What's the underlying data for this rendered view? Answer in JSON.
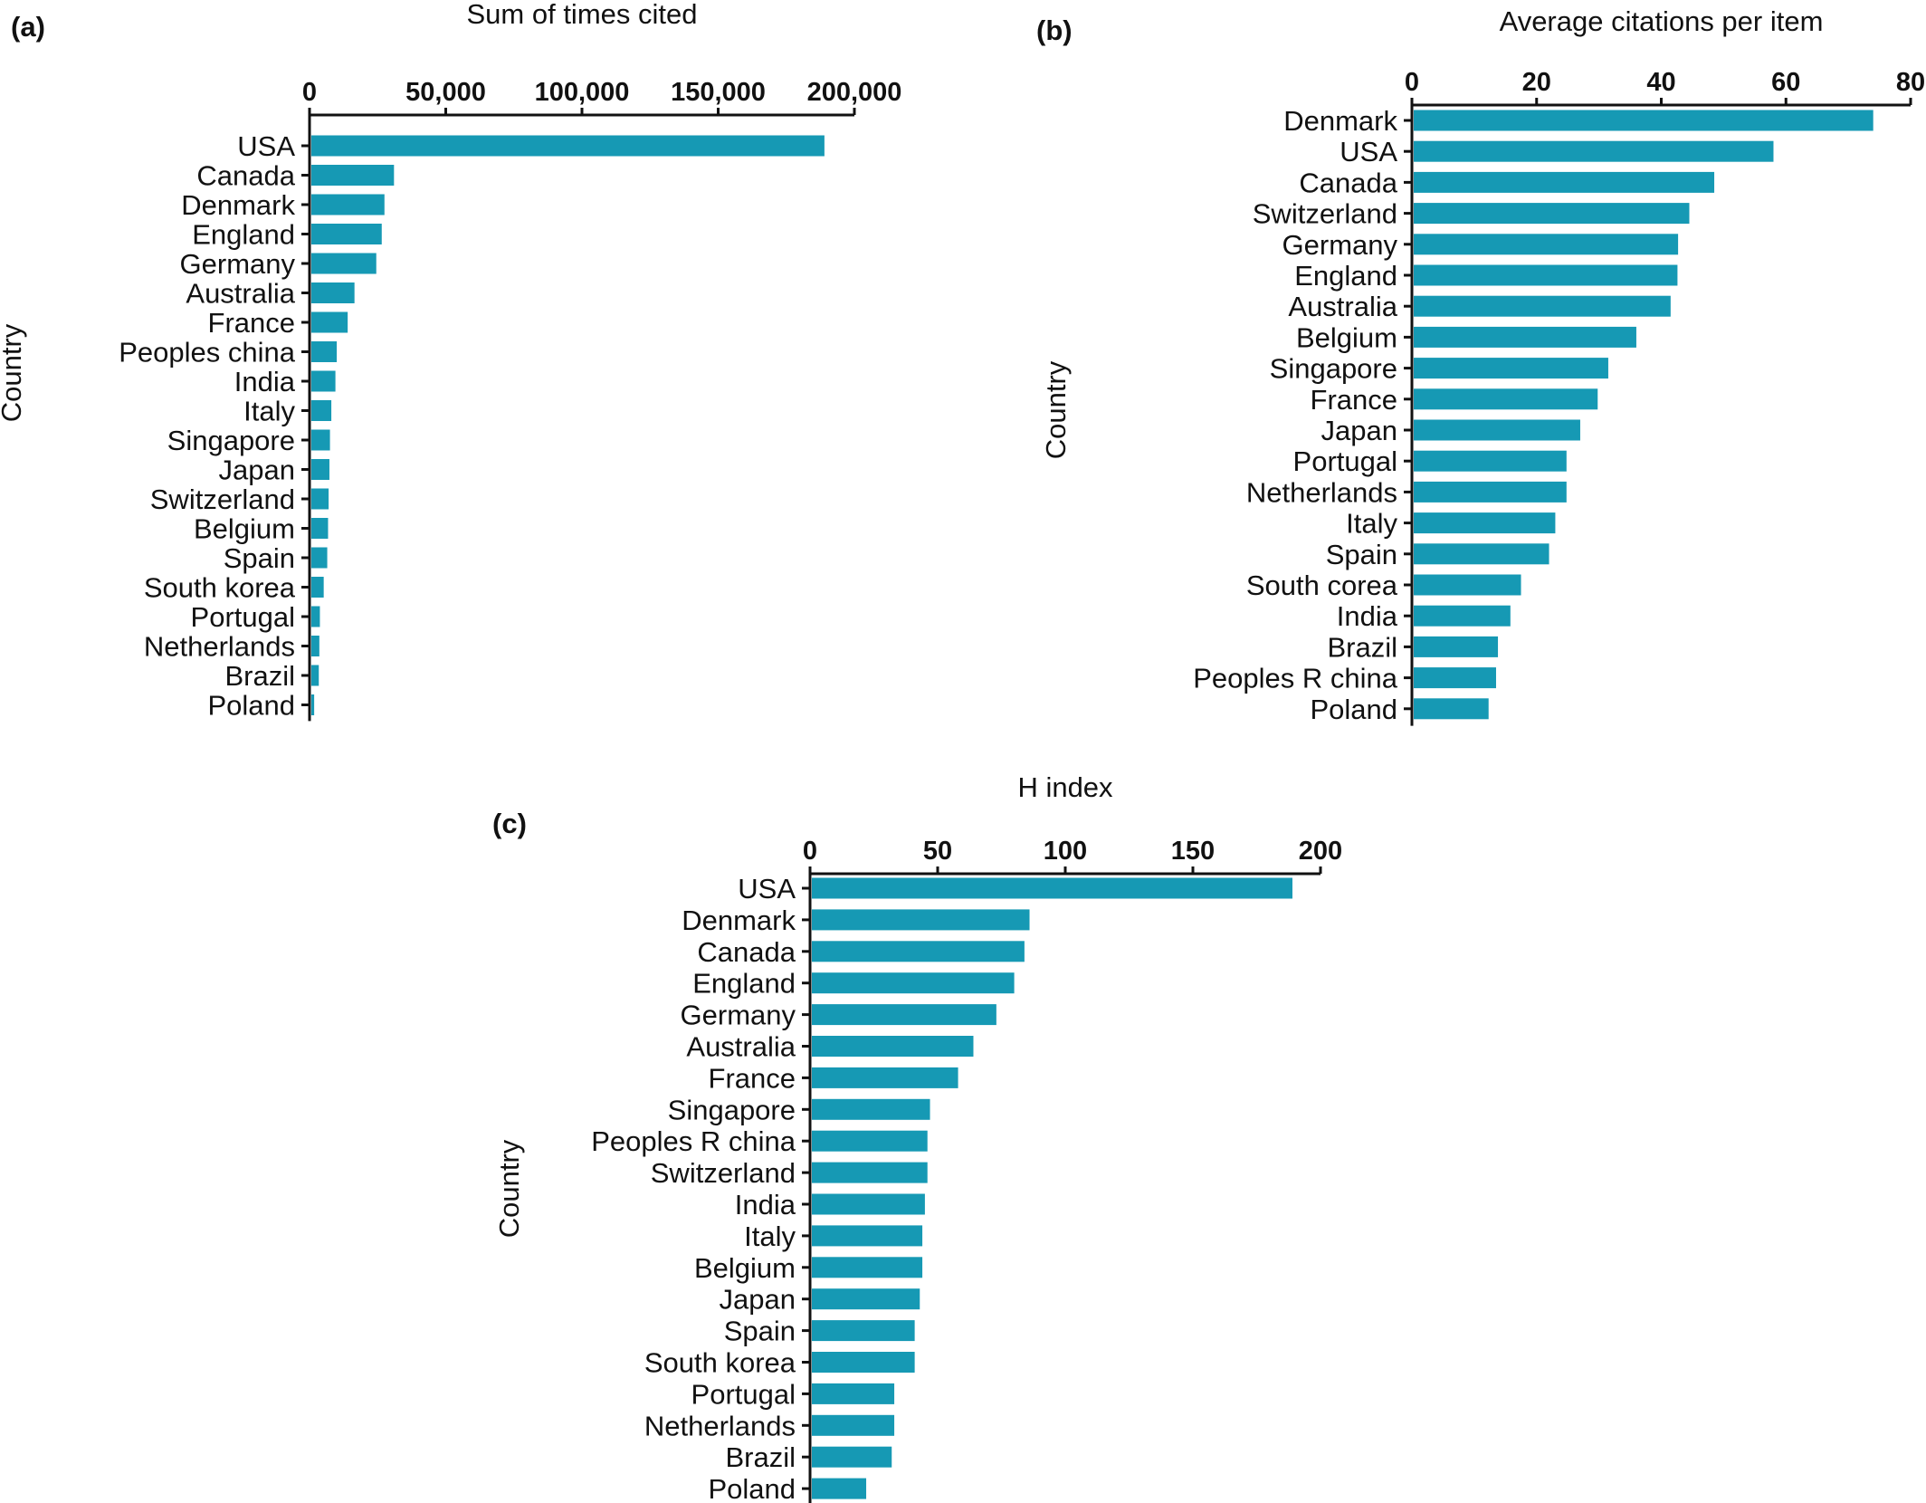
{
  "panels": {
    "a": {
      "letter": "(a)"
    },
    "b": {
      "letter": "(b)"
    },
    "c": {
      "letter": "(c)"
    }
  },
  "colors": {
    "bar": "#1699b4",
    "axis": "#111111"
  },
  "chart_data": [
    {
      "id": "a",
      "type": "bar",
      "orientation": "horizontal",
      "title": "Sum of times cited",
      "ylabel": "Country",
      "xlabel": "",
      "xlim": [
        0,
        200000
      ],
      "ticks": [
        0,
        50000,
        100000,
        150000,
        200000
      ],
      "tick_labels": [
        "0",
        "50,000",
        "100,000",
        "150,000",
        "200,000"
      ],
      "categories": [
        "USA",
        "Canada",
        "Denmark",
        "England",
        "Germany",
        "Australia",
        "France",
        "Peoples china",
        "India",
        "Italy",
        "Singapore",
        "Japan",
        "Switzerland",
        "Belgium",
        "Spain",
        "South korea",
        "Portugal",
        "Netherlands",
        "Brazil",
        "Poland"
      ],
      "values": [
        189000,
        31000,
        27500,
        26500,
        24500,
        16500,
        14000,
        10000,
        9500,
        8000,
        7500,
        7300,
        7000,
        6800,
        6500,
        5200,
        3800,
        3600,
        3400,
        1700
      ],
      "grid": false,
      "legend": "none"
    },
    {
      "id": "b",
      "type": "bar",
      "orientation": "horizontal",
      "title": "Average citations per item",
      "ylabel": "Country",
      "xlabel": "",
      "xlim": [
        0,
        80
      ],
      "ticks": [
        0,
        20,
        40,
        60,
        80
      ],
      "tick_labels": [
        "0",
        "20",
        "40",
        "60",
        "80"
      ],
      "categories": [
        "Denmark",
        "USA",
        "Canada",
        "Switzerland",
        "Germany",
        "England",
        "Australia",
        "Belgium",
        "Singapore",
        "France",
        "Japan",
        "Portugal",
        "Netherlands",
        "Italy",
        "Spain",
        "South corea",
        "India",
        "Brazil",
        "Peoples R china",
        "Poland"
      ],
      "values": [
        74,
        58,
        48.5,
        44.5,
        42.7,
        42.6,
        41.5,
        36,
        31.5,
        29.8,
        27,
        24.8,
        24.8,
        23,
        22,
        17.5,
        15.8,
        13.8,
        13.5,
        12.3
      ],
      "grid": false,
      "legend": "none"
    },
    {
      "id": "c",
      "type": "bar",
      "orientation": "horizontal",
      "title": "H index",
      "ylabel": "Country",
      "xlabel": "",
      "xlim": [
        0,
        200
      ],
      "ticks": [
        0,
        50,
        100,
        150,
        200
      ],
      "tick_labels": [
        "0",
        "50",
        "100",
        "150",
        "200"
      ],
      "categories": [
        "USA",
        "Denmark",
        "Canada",
        "England",
        "Germany",
        "Australia",
        "France",
        "Singapore",
        "Peoples R china",
        "Switzerland",
        "India",
        "Italy",
        "Belgium",
        "Japan",
        "Spain",
        "South korea",
        "Portugal",
        "Netherlands",
        "Brazil",
        "Poland"
      ],
      "values": [
        189,
        86,
        84,
        80,
        73,
        64,
        58,
        47,
        46,
        46,
        45,
        44,
        44,
        43,
        41,
        41,
        33,
        33,
        32,
        22
      ],
      "grid": false,
      "legend": "none"
    }
  ]
}
